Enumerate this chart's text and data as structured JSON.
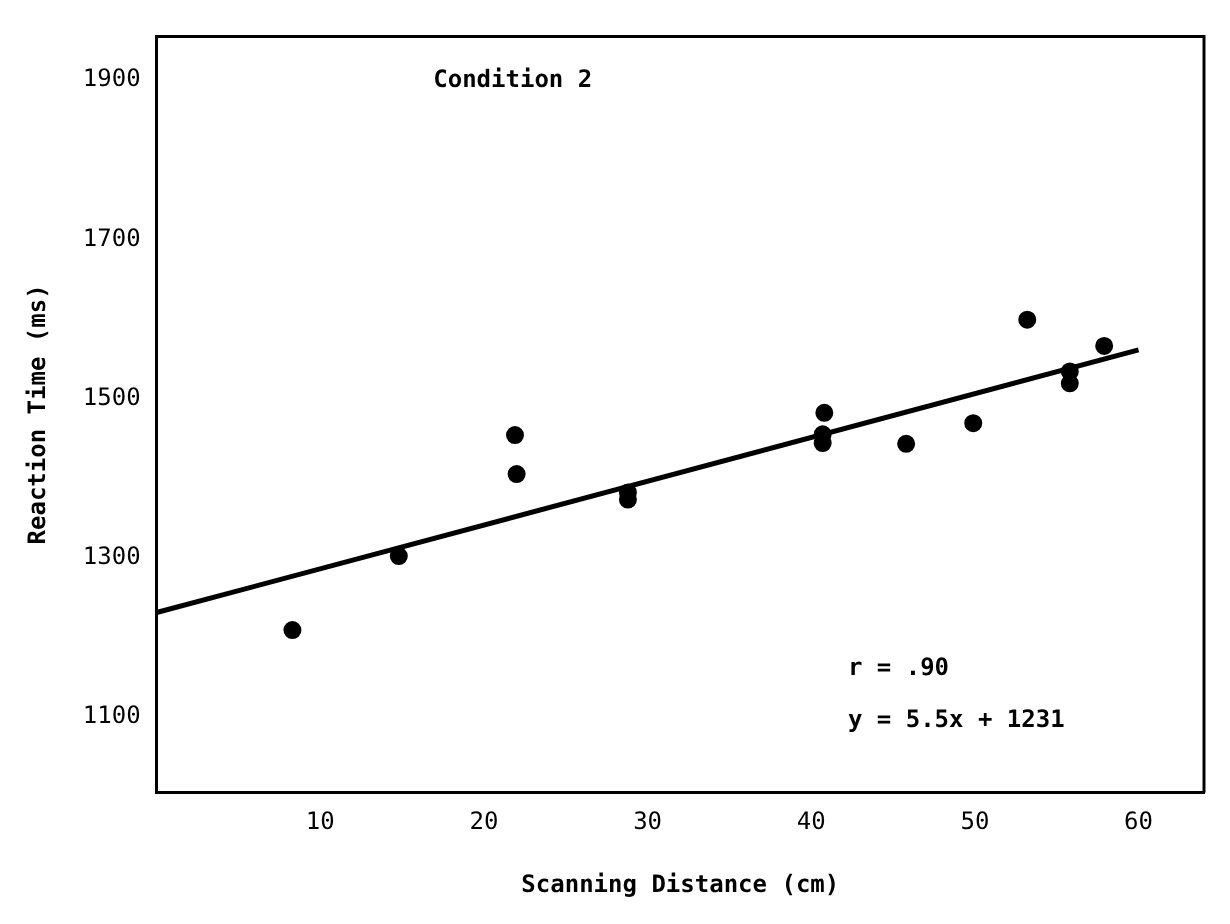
{
  "chart_data": {
    "type": "scatter",
    "title": "Condition 2",
    "xlabel": "Scanning Distance (cm)",
    "ylabel": "Reaction Time (ms)",
    "annotations": [
      "r = .90",
      "y = 5.5x + 1231"
    ],
    "xlim": [
      0,
      64
    ],
    "ylim": [
      1005,
      1955
    ],
    "xticks": [
      10,
      20,
      30,
      40,
      50,
      60
    ],
    "yticks": [
      1100,
      1300,
      1500,
      1700,
      1900
    ],
    "grid": false,
    "legend": false,
    "marker": "circle",
    "series": [
      {
        "color": "#000000",
        "x": [
          8.3,
          14.8,
          21.9,
          22.0,
          28.8,
          28.8,
          40.8,
          40.7,
          40.7,
          45.8,
          49.9,
          53.2,
          55.8,
          55.8,
          57.9
        ],
        "values": [
          1209,
          1302,
          1454,
          1405,
          1382,
          1373,
          1482,
          1455,
          1444,
          1443,
          1469,
          1599,
          1534,
          1519,
          1566
        ]
      },
      {
        "type": "line",
        "color": "#000000",
        "x": [
          0,
          60
        ],
        "values": [
          1231,
          1561
        ],
        "line_style": "solid",
        "marker": "none"
      }
    ]
  }
}
